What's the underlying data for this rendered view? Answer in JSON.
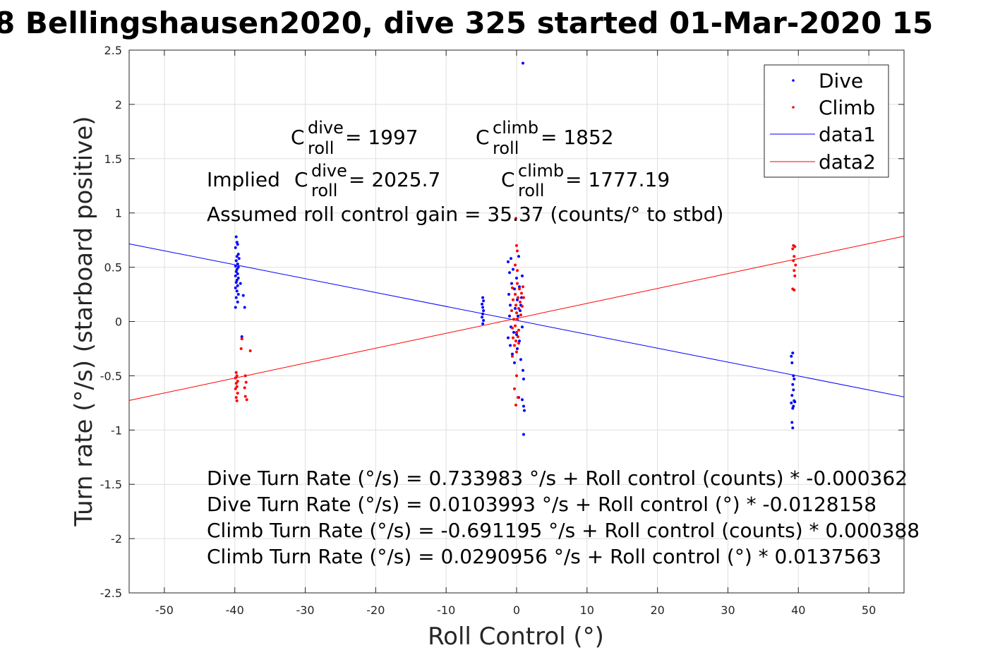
{
  "chart_data": {
    "type": "scatter",
    "title": "8 Bellingshausen2020, dive 325 started 01-Mar-2020 15",
    "xlabel": "Roll Control (°)",
    "ylabel": "Turn rate (°/s) (starboard positive)",
    "xlim": [
      -55,
      55
    ],
    "ylim": [
      -2.5,
      2.5
    ],
    "xticks": [
      -50,
      -40,
      -30,
      -20,
      -10,
      0,
      10,
      20,
      30,
      40,
      50
    ],
    "yticks": [
      -2.5,
      -2,
      -1.5,
      -1,
      -0.5,
      0,
      0.5,
      1,
      1.5,
      2,
      2.5
    ],
    "grid": true,
    "legend": {
      "position": "top-right",
      "entries": [
        "Dive",
        "Climb",
        "data1",
        "data2"
      ]
    },
    "series": [
      {
        "name": "Dive",
        "kind": "points",
        "color": "#0000ff",
        "points": [
          [
            -39.8,
            0.78
          ],
          [
            -39.7,
            0.73
          ],
          [
            -39.6,
            0.71
          ],
          [
            -39.9,
            0.68
          ],
          [
            -39.5,
            0.62
          ],
          [
            -39.7,
            0.6
          ],
          [
            -39.4,
            0.58
          ],
          [
            -39.8,
            0.56
          ],
          [
            -39.6,
            0.53
          ],
          [
            -39.9,
            0.51
          ],
          [
            -39.5,
            0.5
          ],
          [
            -39.7,
            0.48
          ],
          [
            -39.8,
            0.46
          ],
          [
            -39.6,
            0.44
          ],
          [
            -39.9,
            0.42
          ],
          [
            -39.5,
            0.4
          ],
          [
            -39.7,
            0.38
          ],
          [
            -39.8,
            0.36
          ],
          [
            -39.6,
            0.33
          ],
          [
            -39.9,
            0.31
          ],
          [
            -39.7,
            0.28
          ],
          [
            -39.5,
            0.25
          ],
          [
            -39.8,
            0.22
          ],
          [
            -39.6,
            0.18
          ],
          [
            -39.9,
            0.13
          ],
          [
            -39.2,
            0.35
          ],
          [
            -38.8,
            0.24
          ],
          [
            -38.6,
            0.13
          ],
          [
            -39.0,
            -0.14
          ],
          [
            -4.8,
            0.22
          ],
          [
            -4.7,
            0.19
          ],
          [
            -4.9,
            0.16
          ],
          [
            -4.8,
            0.13
          ],
          [
            -4.7,
            0.1
          ],
          [
            -4.8,
            0.07
          ],
          [
            -4.9,
            0.04
          ],
          [
            -4.7,
            0.01
          ],
          [
            -4.8,
            -0.02
          ],
          [
            -1.2,
            0.55
          ],
          [
            -0.8,
            0.58
          ],
          [
            -1.0,
            0.45
          ],
          [
            -0.7,
            0.35
          ],
          [
            -1.1,
            0.25
          ],
          [
            -0.9,
            0.15
          ],
          [
            -1.0,
            0.05
          ],
          [
            -0.8,
            -0.05
          ],
          [
            -1.2,
            -0.15
          ],
          [
            -0.9,
            -0.22
          ],
          [
            -0.6,
            -0.3
          ],
          [
            -0.5,
            0.48
          ],
          [
            -0.3,
            0.3
          ],
          [
            -0.2,
            0.12
          ],
          [
            -0.4,
            -0.1
          ],
          [
            -0.3,
            -0.38
          ],
          [
            0.0,
            0.4
          ],
          [
            0.1,
            0.2
          ],
          [
            0.2,
            0.05
          ],
          [
            0.0,
            -0.12
          ],
          [
            0.1,
            -0.25
          ],
          [
            0.3,
            0.6
          ],
          [
            0.4,
            0.32
          ],
          [
            0.5,
            0.1
          ],
          [
            0.4,
            -0.18
          ],
          [
            0.6,
            -0.35
          ],
          [
            0.7,
            0.22
          ],
          [
            0.8,
            -0.05
          ],
          [
            0.9,
            -0.45
          ],
          [
            0.3,
            -0.7
          ],
          [
            0.8,
            -0.72
          ],
          [
            1.0,
            -0.53
          ],
          [
            1.0,
            -0.78
          ],
          [
            1.1,
            -0.82
          ],
          [
            1.0,
            -1.04
          ],
          [
            0.9,
            2.38
          ],
          [
            0.8,
            0.42
          ],
          [
            0.6,
            0.15
          ],
          [
            39.2,
            -0.29
          ],
          [
            39.0,
            -0.32
          ],
          [
            39.1,
            -0.38
          ],
          [
            39.3,
            -0.5
          ],
          [
            39.4,
            -0.53
          ],
          [
            39.2,
            -0.58
          ],
          [
            39.3,
            -0.63
          ],
          [
            39.1,
            -0.68
          ],
          [
            39.4,
            -0.73
          ],
          [
            39.0,
            -0.75
          ],
          [
            39.3,
            -0.78
          ],
          [
            39.2,
            -0.8
          ],
          [
            39.5,
            -0.74
          ],
          [
            39.1,
            -0.93
          ],
          [
            39.2,
            -0.98
          ]
        ]
      },
      {
        "name": "Climb",
        "kind": "points",
        "color": "#ff0000",
        "points": [
          [
            -39.8,
            -0.47
          ],
          [
            -39.7,
            -0.5
          ],
          [
            -39.9,
            -0.52
          ],
          [
            -39.6,
            -0.55
          ],
          [
            -39.8,
            -0.57
          ],
          [
            -39.7,
            -0.6
          ],
          [
            -39.9,
            -0.62
          ],
          [
            -39.6,
            -0.66
          ],
          [
            -39.8,
            -0.7
          ],
          [
            -39.7,
            -0.73
          ],
          [
            -39.0,
            -0.16
          ],
          [
            -39.1,
            -0.25
          ],
          [
            -38.5,
            -0.5
          ],
          [
            -38.4,
            -0.56
          ],
          [
            -38.6,
            -0.61
          ],
          [
            -38.5,
            -0.69
          ],
          [
            -38.3,
            -0.72
          ],
          [
            -37.8,
            -0.27
          ],
          [
            -0.6,
            0.31
          ],
          [
            -0.5,
            0.2
          ],
          [
            -0.7,
            0.1
          ],
          [
            -0.4,
            0.02
          ],
          [
            -0.6,
            -0.06
          ],
          [
            -0.5,
            -0.15
          ],
          [
            -0.3,
            -0.22
          ],
          [
            -0.6,
            -0.32
          ],
          [
            -0.2,
            0.25
          ],
          [
            -0.1,
            0.15
          ],
          [
            0.0,
            0.08
          ],
          [
            -0.2,
            -0.04
          ],
          [
            0.0,
            -0.1
          ],
          [
            -0.1,
            -0.18
          ],
          [
            0.0,
            -0.28
          ],
          [
            0.1,
            0.35
          ],
          [
            0.2,
            0.22
          ],
          [
            0.3,
            0.12
          ],
          [
            0.1,
            0.02
          ],
          [
            0.3,
            -0.08
          ],
          [
            0.2,
            -0.14
          ],
          [
            0.4,
            0.3
          ],
          [
            0.5,
            0.18
          ],
          [
            0.3,
            -0.2
          ],
          [
            0.6,
            0.06
          ],
          [
            0.7,
            0.26
          ],
          [
            0.8,
            0.14
          ],
          [
            0.9,
            0.32
          ],
          [
            1.0,
            0.22
          ],
          [
            -0.1,
            0.95
          ],
          [
            0.0,
            0.7
          ],
          [
            0.1,
            0.65
          ],
          [
            -0.2,
            0.52
          ],
          [
            0.1,
            0.47
          ],
          [
            0.0,
            -0.5
          ],
          [
            -0.3,
            -0.62
          ],
          [
            -0.1,
            -0.77
          ],
          [
            0.2,
            -0.7
          ],
          [
            39.3,
            0.7
          ],
          [
            39.5,
            0.69
          ],
          [
            39.2,
            0.67
          ],
          [
            39.4,
            0.6
          ],
          [
            39.3,
            0.56
          ],
          [
            39.6,
            0.52
          ],
          [
            39.4,
            0.47
          ],
          [
            39.5,
            0.42
          ],
          [
            39.2,
            0.3
          ],
          [
            39.4,
            0.29
          ]
        ]
      },
      {
        "name": "data1",
        "kind": "line",
        "color": "#0000ff",
        "intercept": 0.0103993,
        "slope": -0.0128158
      },
      {
        "name": "data2",
        "kind": "line",
        "color": "#ff0000",
        "intercept": 0.0290956,
        "slope": 0.0137563
      }
    ],
    "annotations": {
      "c_dive": {
        "base": "C",
        "sup": "dive",
        "sub": "roll",
        "value": " = 1997"
      },
      "c_climb": {
        "base": "C",
        "sup": "climb",
        "sub": "roll",
        "value": " = 1852"
      },
      "implied_dive": {
        "prefix": "Implied ",
        "base": "C",
        "sup": "dive",
        "sub": "roll",
        "value": " = 2025.7"
      },
      "implied_climb": {
        "base": "C",
        "sup": "climb",
        "sub": "roll",
        "value": " = 1777.19"
      },
      "gain": "Assumed roll control gain = 35.37 (counts/° to stbd)",
      "eq1": "Dive Turn Rate (°/s) = 0.733983 °/s + Roll control (counts) * -0.000362",
      "eq2": "Dive Turn Rate (°/s) = 0.0103993 °/s + Roll control (°) * -0.0128158",
      "eq3": "Climb Turn Rate (°/s) = -0.691195 °/s + Roll control (counts) * 0.000388",
      "eq4": "Climb Turn Rate (°/s) = 0.0290956 °/s + Roll control (°) * 0.0137563"
    }
  }
}
